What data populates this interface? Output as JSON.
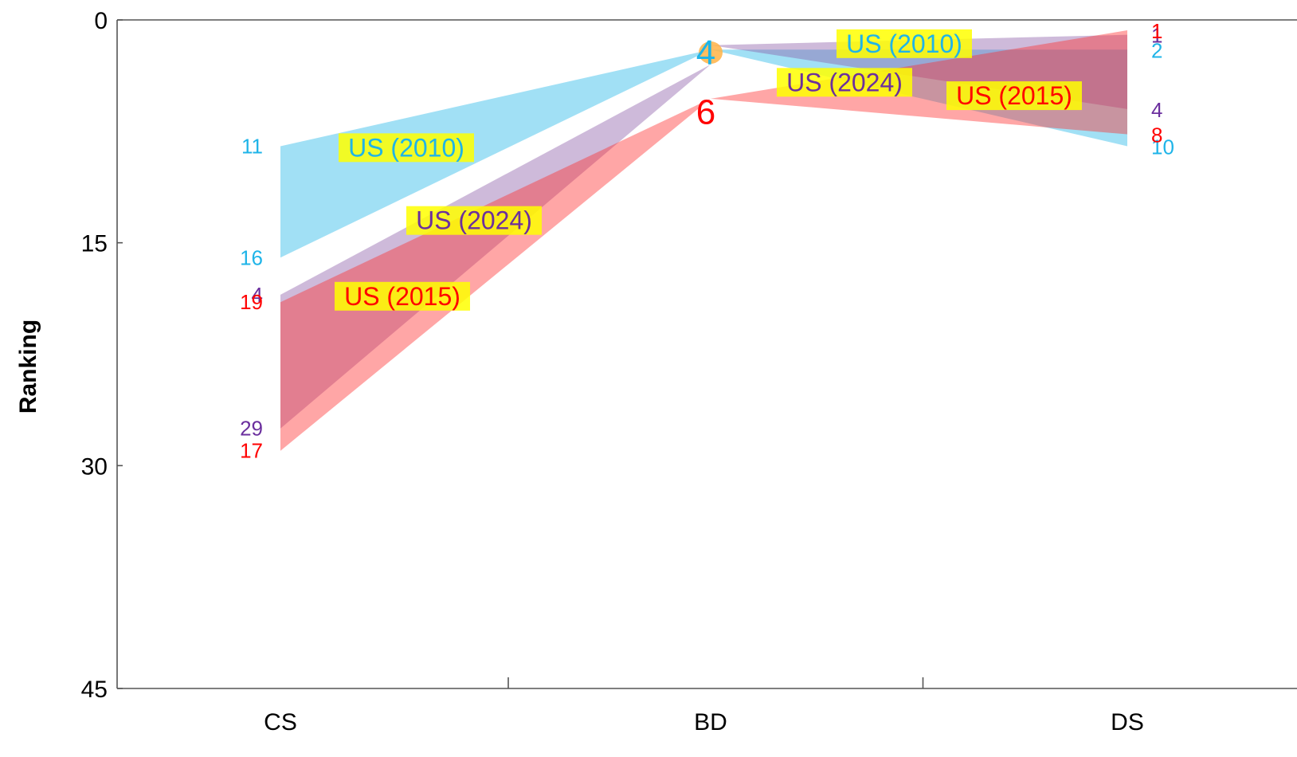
{
  "chart_data": {
    "type": "slope-band",
    "ylabel": "Ranking",
    "ylim": [
      0,
      45
    ],
    "y_reversed": true,
    "yticks": [
      0,
      15,
      30,
      45
    ],
    "categories": [
      "CS",
      "BD",
      "DS"
    ],
    "colors": {
      "US (2010)": "#1fb4e8",
      "US (2015)": "#ff2a2a",
      "US (2024)": "#8a5aa8",
      "highlight": "#ffff00"
    },
    "series": [
      {
        "name": "US (2010)",
        "color": "#1fb4e8",
        "label_color": "#1fb4e8",
        "left_segment": {
          "from": "CS",
          "to": "BD",
          "from_ranks": [
            8.5,
            16
          ],
          "to_rank": 2,
          "labels": [
            "11",
            "16"
          ]
        },
        "right_segment": {
          "from": "BD",
          "to": "DS",
          "from_rank": 2,
          "to_ranks": [
            2,
            8.5
          ],
          "labels": [
            "2",
            "10"
          ]
        },
        "hub_label": "4"
      },
      {
        "name": "US (2024)",
        "color": "#8a5aa8",
        "label_color": "#6b2f9e",
        "left_segment": {
          "from": "CS",
          "to": "BD",
          "from_ranks": [
            18.5,
            27.5
          ],
          "to_rank": 3,
          "labels": [
            "4",
            "29"
          ]
        },
        "right_segment": {
          "from": "BD",
          "to": "DS",
          "from_rank": 1.7,
          "to_ranks": [
            1,
            6
          ],
          "labels": [
            "1",
            "4"
          ]
        },
        "hub_label": ""
      },
      {
        "name": "US (2015)",
        "color": "#ff2a2a",
        "label_color": "#ff0000",
        "left_segment": {
          "from": "CS",
          "to": "BD",
          "from_ranks": [
            19,
            29
          ],
          "to_rank": 5.3,
          "labels": [
            "19",
            "17"
          ]
        },
        "right_segment": {
          "from": "BD",
          "to": "DS",
          "from_rank": 5.3,
          "to_ranks": [
            0.7,
            7.7
          ],
          "labels": [
            "1",
            "8"
          ]
        },
        "hub_label": "6"
      }
    ],
    "band_labels": [
      {
        "text": "US (2010)",
        "segment": "CS-BD",
        "color": "#1fb4e8"
      },
      {
        "text": "US (2024)",
        "segment": "CS-BD",
        "color": "#6b2f9e"
      },
      {
        "text": "US (2015)",
        "segment": "CS-BD",
        "color": "#ff0000"
      },
      {
        "text": "US (2010)",
        "segment": "BD-DS",
        "color": "#1fb4e8"
      },
      {
        "text": "US (2024)",
        "segment": "BD-DS",
        "color": "#6b2f9e"
      },
      {
        "text": "US (2015)",
        "segment": "BD-DS",
        "color": "#ff0000"
      }
    ]
  }
}
